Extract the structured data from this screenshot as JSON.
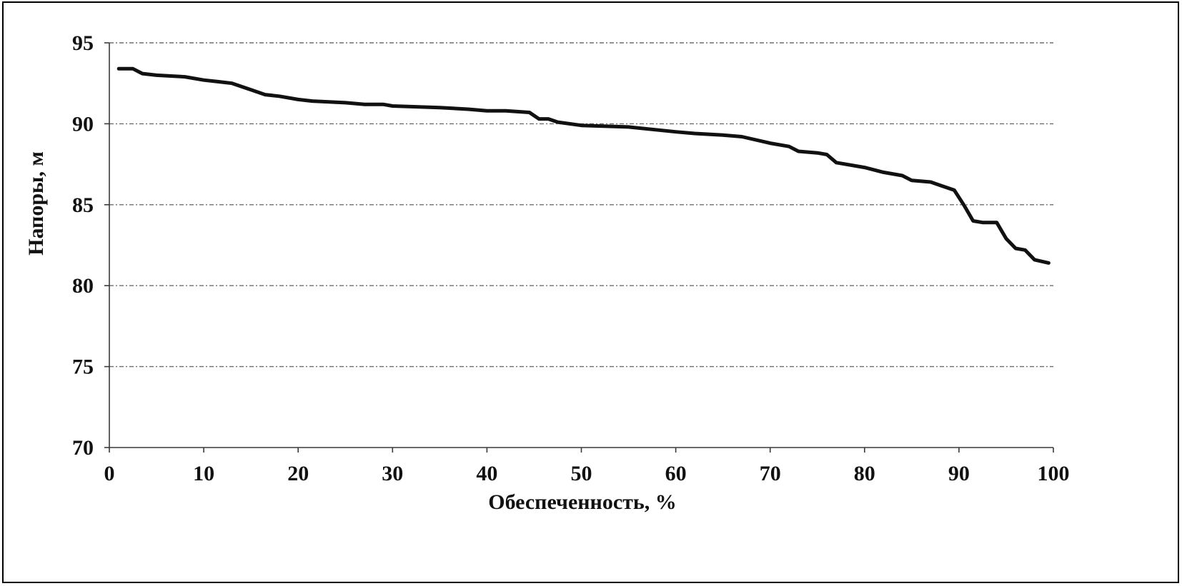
{
  "chart_data": {
    "type": "line",
    "title": "",
    "xlabel": "Обеспеченность, %",
    "ylabel": "Напоры, м",
    "xlim": [
      0,
      100
    ],
    "ylim": [
      70,
      95
    ],
    "xticks": [
      0,
      10,
      20,
      30,
      40,
      50,
      60,
      70,
      80,
      90,
      100
    ],
    "yticks": [
      70,
      75,
      80,
      85,
      90,
      95
    ],
    "xtick_labels": [
      "0",
      "10",
      "20",
      "30",
      "40",
      "50",
      "60",
      "70",
      "80",
      "90",
      "100"
    ],
    "ytick_labels": [
      "70",
      "75",
      "80",
      "85",
      "90",
      "95"
    ],
    "grid": true,
    "legend": "none",
    "line_color": "#111111",
    "series": [
      {
        "x": [
          1,
          2.5,
          3.5,
          5,
          8,
          10,
          11.5,
          13,
          15,
          16.5,
          18,
          20,
          21.5,
          25,
          27,
          29,
          30,
          35,
          38,
          40,
          42,
          44.5,
          45.5,
          46.5,
          47.5,
          50,
          55,
          60,
          62,
          65,
          67,
          70,
          72,
          73,
          75,
          76,
          77,
          80,
          82,
          84,
          85,
          87,
          88,
          89.5,
          90.5,
          91.5,
          92.5,
          94,
          95,
          96,
          97,
          98,
          99.5
        ],
        "y": [
          93.4,
          93.4,
          93.1,
          93.0,
          92.9,
          92.7,
          92.6,
          92.5,
          92.1,
          91.8,
          91.7,
          91.5,
          91.4,
          91.3,
          91.2,
          91.2,
          91.1,
          91.0,
          90.9,
          90.8,
          90.8,
          90.7,
          90.3,
          90.3,
          90.1,
          89.9,
          89.8,
          89.5,
          89.4,
          89.3,
          89.2,
          88.8,
          88.6,
          88.3,
          88.2,
          88.1,
          87.6,
          87.3,
          87.0,
          86.8,
          86.5,
          86.4,
          86.2,
          85.9,
          85.0,
          84.0,
          83.9,
          83.9,
          82.9,
          82.3,
          82.2,
          81.6,
          81.4
        ]
      }
    ]
  }
}
